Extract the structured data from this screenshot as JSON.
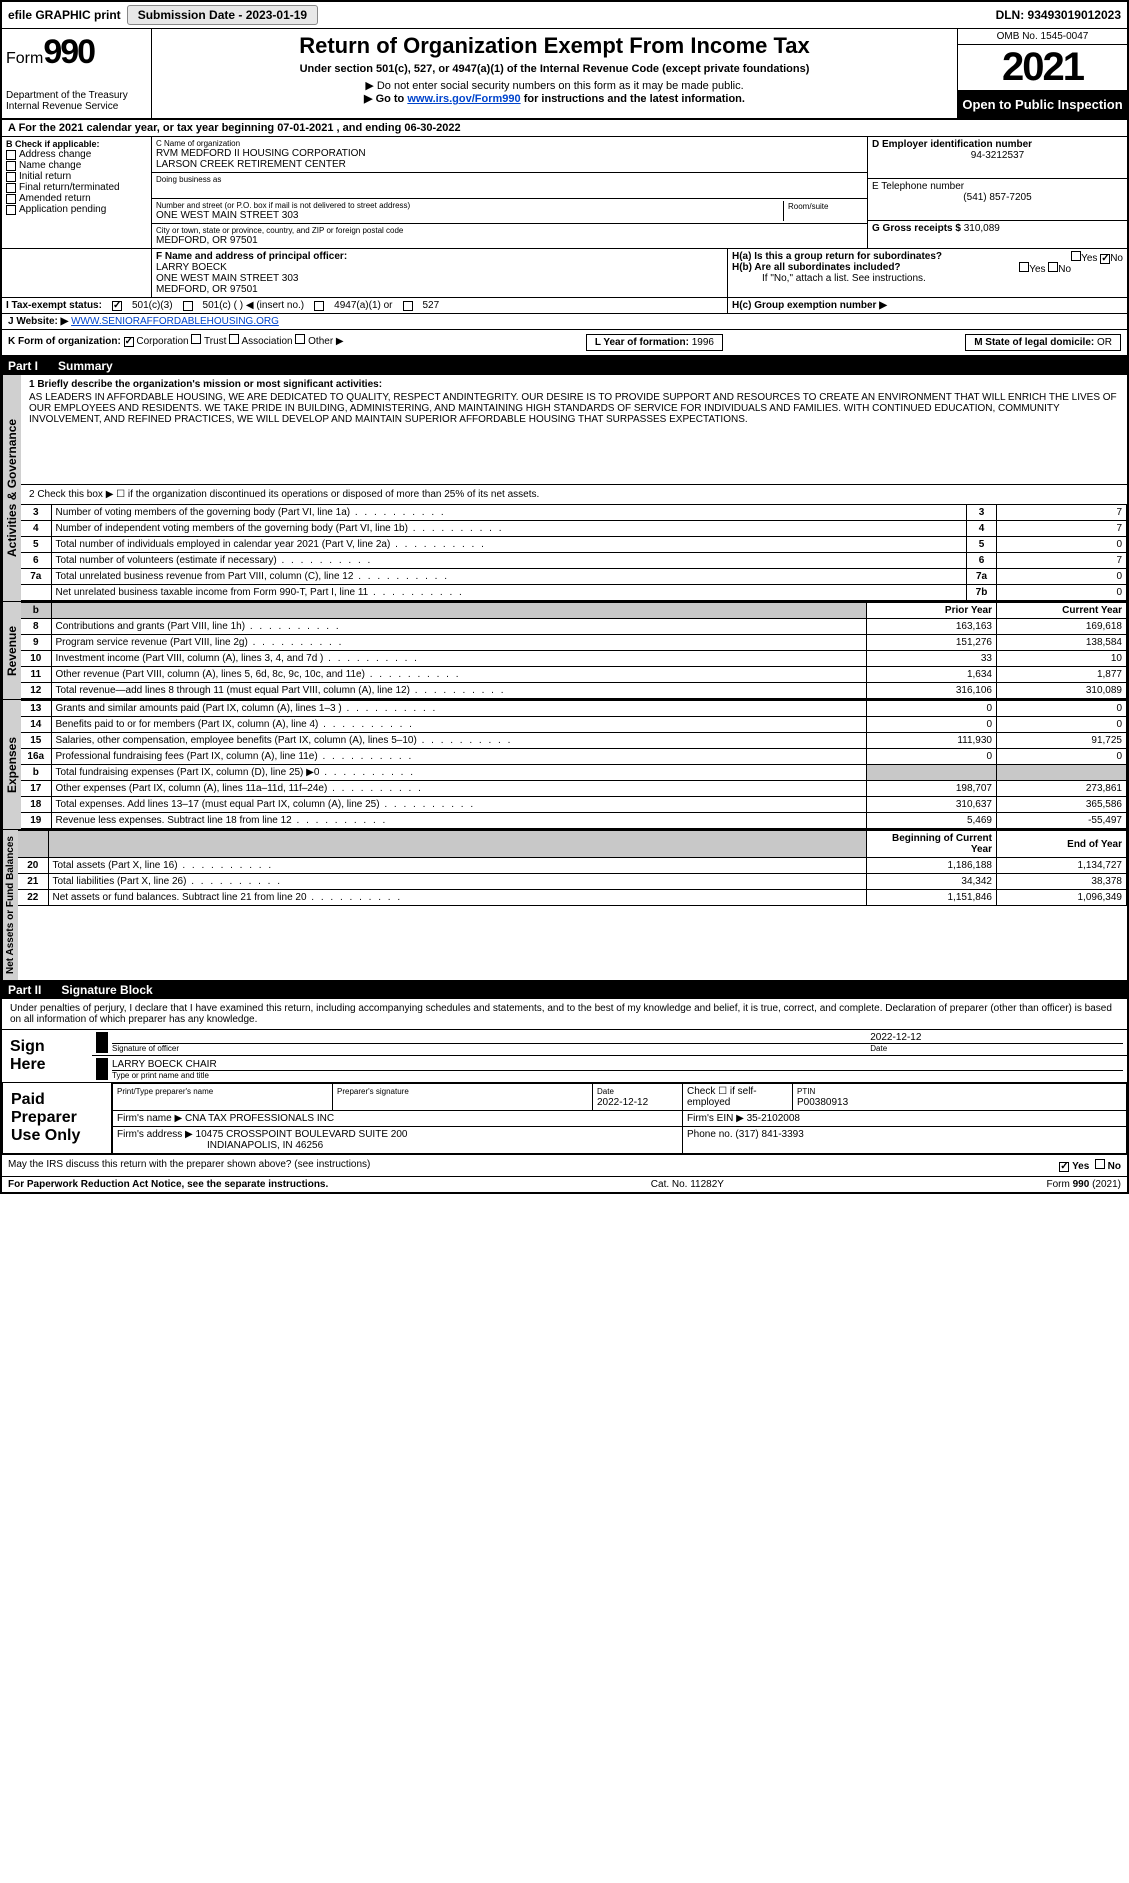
{
  "top_bar": {
    "efile": "efile GRAPHIC print",
    "submission_label": "Submission Date - 2023-01-19",
    "dln": "DLN: 93493019012023"
  },
  "header": {
    "form_label": "Form",
    "form_num": "990",
    "title": "Return of Organization Exempt From Income Tax",
    "subtitle": "Under section 501(c), 527, or 4947(a)(1) of the Internal Revenue Code (except private foundations)",
    "note1": "▶ Do not enter social security numbers on this form as it may be made public.",
    "note2_pre": "▶ Go to ",
    "note2_link": "www.irs.gov/Form990",
    "note2_post": " for instructions and the latest information.",
    "dept": "Department of the Treasury",
    "irs": "Internal Revenue Service",
    "omb": "OMB No. 1545-0047",
    "year": "2021",
    "open": "Open to Public Inspection"
  },
  "period": {
    "line": "A For the 2021 calendar year, or tax year beginning 07-01-2021   , and ending 06-30-2022"
  },
  "block_b": {
    "title": "B Check if applicable:",
    "items": [
      "Address change",
      "Name change",
      "Initial return",
      "Final return/terminated",
      "Amended return",
      "Application pending"
    ]
  },
  "block_c": {
    "label": "C Name of organization",
    "name1": "RVM MEDFORD II HOUSING CORPORATION",
    "name2": "LARSON CREEK RETIREMENT CENTER",
    "dba_label": "Doing business as",
    "addr_label": "Number and street (or P.O. box if mail is not delivered to street address)",
    "room_label": "Room/suite",
    "addr": "ONE WEST MAIN STREET 303",
    "city_label": "City or town, state or province, country, and ZIP or foreign postal code",
    "city": "MEDFORD, OR  97501"
  },
  "block_d": {
    "label": "D Employer identification number",
    "val": "94-3212537"
  },
  "block_e": {
    "label": "E Telephone number",
    "val": "(541) 857-7205"
  },
  "block_g": {
    "label": "G Gross receipts $",
    "val": "310,089"
  },
  "block_f": {
    "label": "F Name and address of principal officer:",
    "name": "LARRY BOECK",
    "addr1": "ONE WEST MAIN STREET 303",
    "addr2": "MEDFORD, OR  97501"
  },
  "block_h": {
    "ha": "H(a) Is this a group return for subordinates?",
    "hb": "H(b) Are all subordinates included?",
    "hb_note": "If \"No,\" attach a list. See instructions.",
    "hc": "H(c) Group exemption number ▶",
    "yes": "Yes",
    "no": "No"
  },
  "block_i": {
    "label": "I Tax-exempt status:",
    "opt1": "501(c)(3)",
    "opt2": "501(c) (   ) ◀ (insert no.)",
    "opt3": "4947(a)(1) or",
    "opt4": "527"
  },
  "block_j": {
    "label": "J Website: ▶",
    "val": "WWW.SENIORAFFORDABLEHOUSING.ORG"
  },
  "block_k": {
    "label": "K Form of organization:",
    "opts": [
      "Corporation",
      "Trust",
      "Association",
      "Other ▶"
    ]
  },
  "block_l": {
    "label": "L Year of formation:",
    "val": "1996"
  },
  "block_m": {
    "label": "M State of legal domicile:",
    "val": "OR"
  },
  "part1": {
    "header_part": "Part I",
    "header_title": "Summary",
    "vert1": "Activities & Governance",
    "vert2": "Revenue",
    "vert3": "Expenses",
    "vert4": "Net Assets or Fund Balances",
    "line1_label": "1 Briefly describe the organization's mission or most significant activities:",
    "mission": "AS LEADERS IN AFFORDABLE HOUSING, WE ARE DEDICATED TO QUALITY, RESPECT ANDINTEGRITY. OUR DESIRE IS TO PROVIDE SUPPORT AND RESOURCES TO CREATE AN ENVIRONMENT THAT WILL ENRICH THE LIVES OF OUR EMPLOYEES AND RESIDENTS. WE TAKE PRIDE IN BUILDING, ADMINISTERING, AND MAINTAINING HIGH STANDARDS OF SERVICE FOR INDIVIDUALS AND FAMILIES. WITH CONTINUED EDUCATION, COMMUNITY INVOLVEMENT, AND REFINED PRACTICES, WE WILL DEVELOP AND MAINTAIN SUPERIOR AFFORDABLE HOUSING THAT SURPASSES EXPECTATIONS.",
    "line2": "2 Check this box ▶ ☐ if the organization discontinued its operations or disposed of more than 25% of its net assets.",
    "gov_rows": [
      {
        "n": "3",
        "label": "Number of voting members of the governing body (Part VI, line 1a)",
        "ref": "3",
        "val": "7"
      },
      {
        "n": "4",
        "label": "Number of independent voting members of the governing body (Part VI, line 1b)",
        "ref": "4",
        "val": "7"
      },
      {
        "n": "5",
        "label": "Total number of individuals employed in calendar year 2021 (Part V, line 2a)",
        "ref": "5",
        "val": "0"
      },
      {
        "n": "6",
        "label": "Total number of volunteers (estimate if necessary)",
        "ref": "6",
        "val": "7"
      },
      {
        "n": "7a",
        "label": "Total unrelated business revenue from Part VIII, column (C), line 12",
        "ref": "7a",
        "val": "0"
      },
      {
        "n": "",
        "label": "Net unrelated business taxable income from Form 990-T, Part I, line 11",
        "ref": "7b",
        "val": "0"
      }
    ],
    "col_prior": "Prior Year",
    "col_current": "Current Year",
    "rev_rows": [
      {
        "n": "8",
        "label": "Contributions and grants (Part VIII, line 1h)",
        "p": "163,163",
        "c": "169,618"
      },
      {
        "n": "9",
        "label": "Program service revenue (Part VIII, line 2g)",
        "p": "151,276",
        "c": "138,584"
      },
      {
        "n": "10",
        "label": "Investment income (Part VIII, column (A), lines 3, 4, and 7d )",
        "p": "33",
        "c": "10"
      },
      {
        "n": "11",
        "label": "Other revenue (Part VIII, column (A), lines 5, 6d, 8c, 9c, 10c, and 11e)",
        "p": "1,634",
        "c": "1,877"
      },
      {
        "n": "12",
        "label": "Total revenue—add lines 8 through 11 (must equal Part VIII, column (A), line 12)",
        "p": "316,106",
        "c": "310,089"
      }
    ],
    "exp_rows": [
      {
        "n": "13",
        "label": "Grants and similar amounts paid (Part IX, column (A), lines 1–3 )",
        "p": "0",
        "c": "0"
      },
      {
        "n": "14",
        "label": "Benefits paid to or for members (Part IX, column (A), line 4)",
        "p": "0",
        "c": "0"
      },
      {
        "n": "15",
        "label": "Salaries, other compensation, employee benefits (Part IX, column (A), lines 5–10)",
        "p": "111,930",
        "c": "91,725"
      },
      {
        "n": "16a",
        "label": "Professional fundraising fees (Part IX, column (A), line 11e)",
        "p": "0",
        "c": "0"
      },
      {
        "n": "b",
        "label": "Total fundraising expenses (Part IX, column (D), line 25) ▶0",
        "p": "",
        "c": "",
        "shade": true
      },
      {
        "n": "17",
        "label": "Other expenses (Part IX, column (A), lines 11a–11d, 11f–24e)",
        "p": "198,707",
        "c": "273,861"
      },
      {
        "n": "18",
        "label": "Total expenses. Add lines 13–17 (must equal Part IX, column (A), line 25)",
        "p": "310,637",
        "c": "365,586"
      },
      {
        "n": "19",
        "label": "Revenue less expenses. Subtract line 18 from line 12",
        "p": "5,469",
        "c": "-55,497"
      }
    ],
    "col_begin": "Beginning of Current Year",
    "col_end": "End of Year",
    "net_rows": [
      {
        "n": "20",
        "label": "Total assets (Part X, line 16)",
        "p": "1,186,188",
        "c": "1,134,727"
      },
      {
        "n": "21",
        "label": "Total liabilities (Part X, line 26)",
        "p": "34,342",
        "c": "38,378"
      },
      {
        "n": "22",
        "label": "Net assets or fund balances. Subtract line 21 from line 20",
        "p": "1,151,846",
        "c": "1,096,349"
      }
    ]
  },
  "part2": {
    "header_part": "Part II",
    "header_title": "Signature Block",
    "declare": "Under penalties of perjury, I declare that I have examined this return, including accompanying schedules and statements, and to the best of my knowledge and belief, it is true, correct, and complete. Declaration of preparer (other than officer) is based on all information of which preparer has any knowledge.",
    "sign_here": "Sign Here",
    "sig_officer_lbl": "Signature of officer",
    "sig_date": "2022-12-12",
    "date_lbl": "Date",
    "officer_name": "LARRY BOECK  CHAIR",
    "officer_name_lbl": "Type or print name and title",
    "paid": "Paid Preparer Use Only",
    "prep_name_lbl": "Print/Type preparer's name",
    "prep_sig_lbl": "Preparer's signature",
    "prep_date": "2022-12-12",
    "self_emp": "Check ☐ if self-employed",
    "ptin_lbl": "PTIN",
    "ptin": "P00380913",
    "firm_name_lbl": "Firm's name    ▶",
    "firm_name": "CNA TAX PROFESSIONALS INC",
    "firm_ein_lbl": "Firm's EIN ▶",
    "firm_ein": "35-2102008",
    "firm_addr_lbl": "Firm's address ▶",
    "firm_addr": "10475 CROSSPOINT BOULEVARD SUITE 200",
    "firm_city": "INDIANAPOLIS, IN  46256",
    "phone_lbl": "Phone no.",
    "phone": "(317) 841-3393",
    "discuss": "May the IRS discuss this return with the preparer shown above? (see instructions)",
    "yes": "Yes",
    "no": "No"
  },
  "footer": {
    "pra": "For Paperwork Reduction Act Notice, see the separate instructions.",
    "cat": "Cat. No. 11282Y",
    "form": "Form 990 (2021)"
  }
}
